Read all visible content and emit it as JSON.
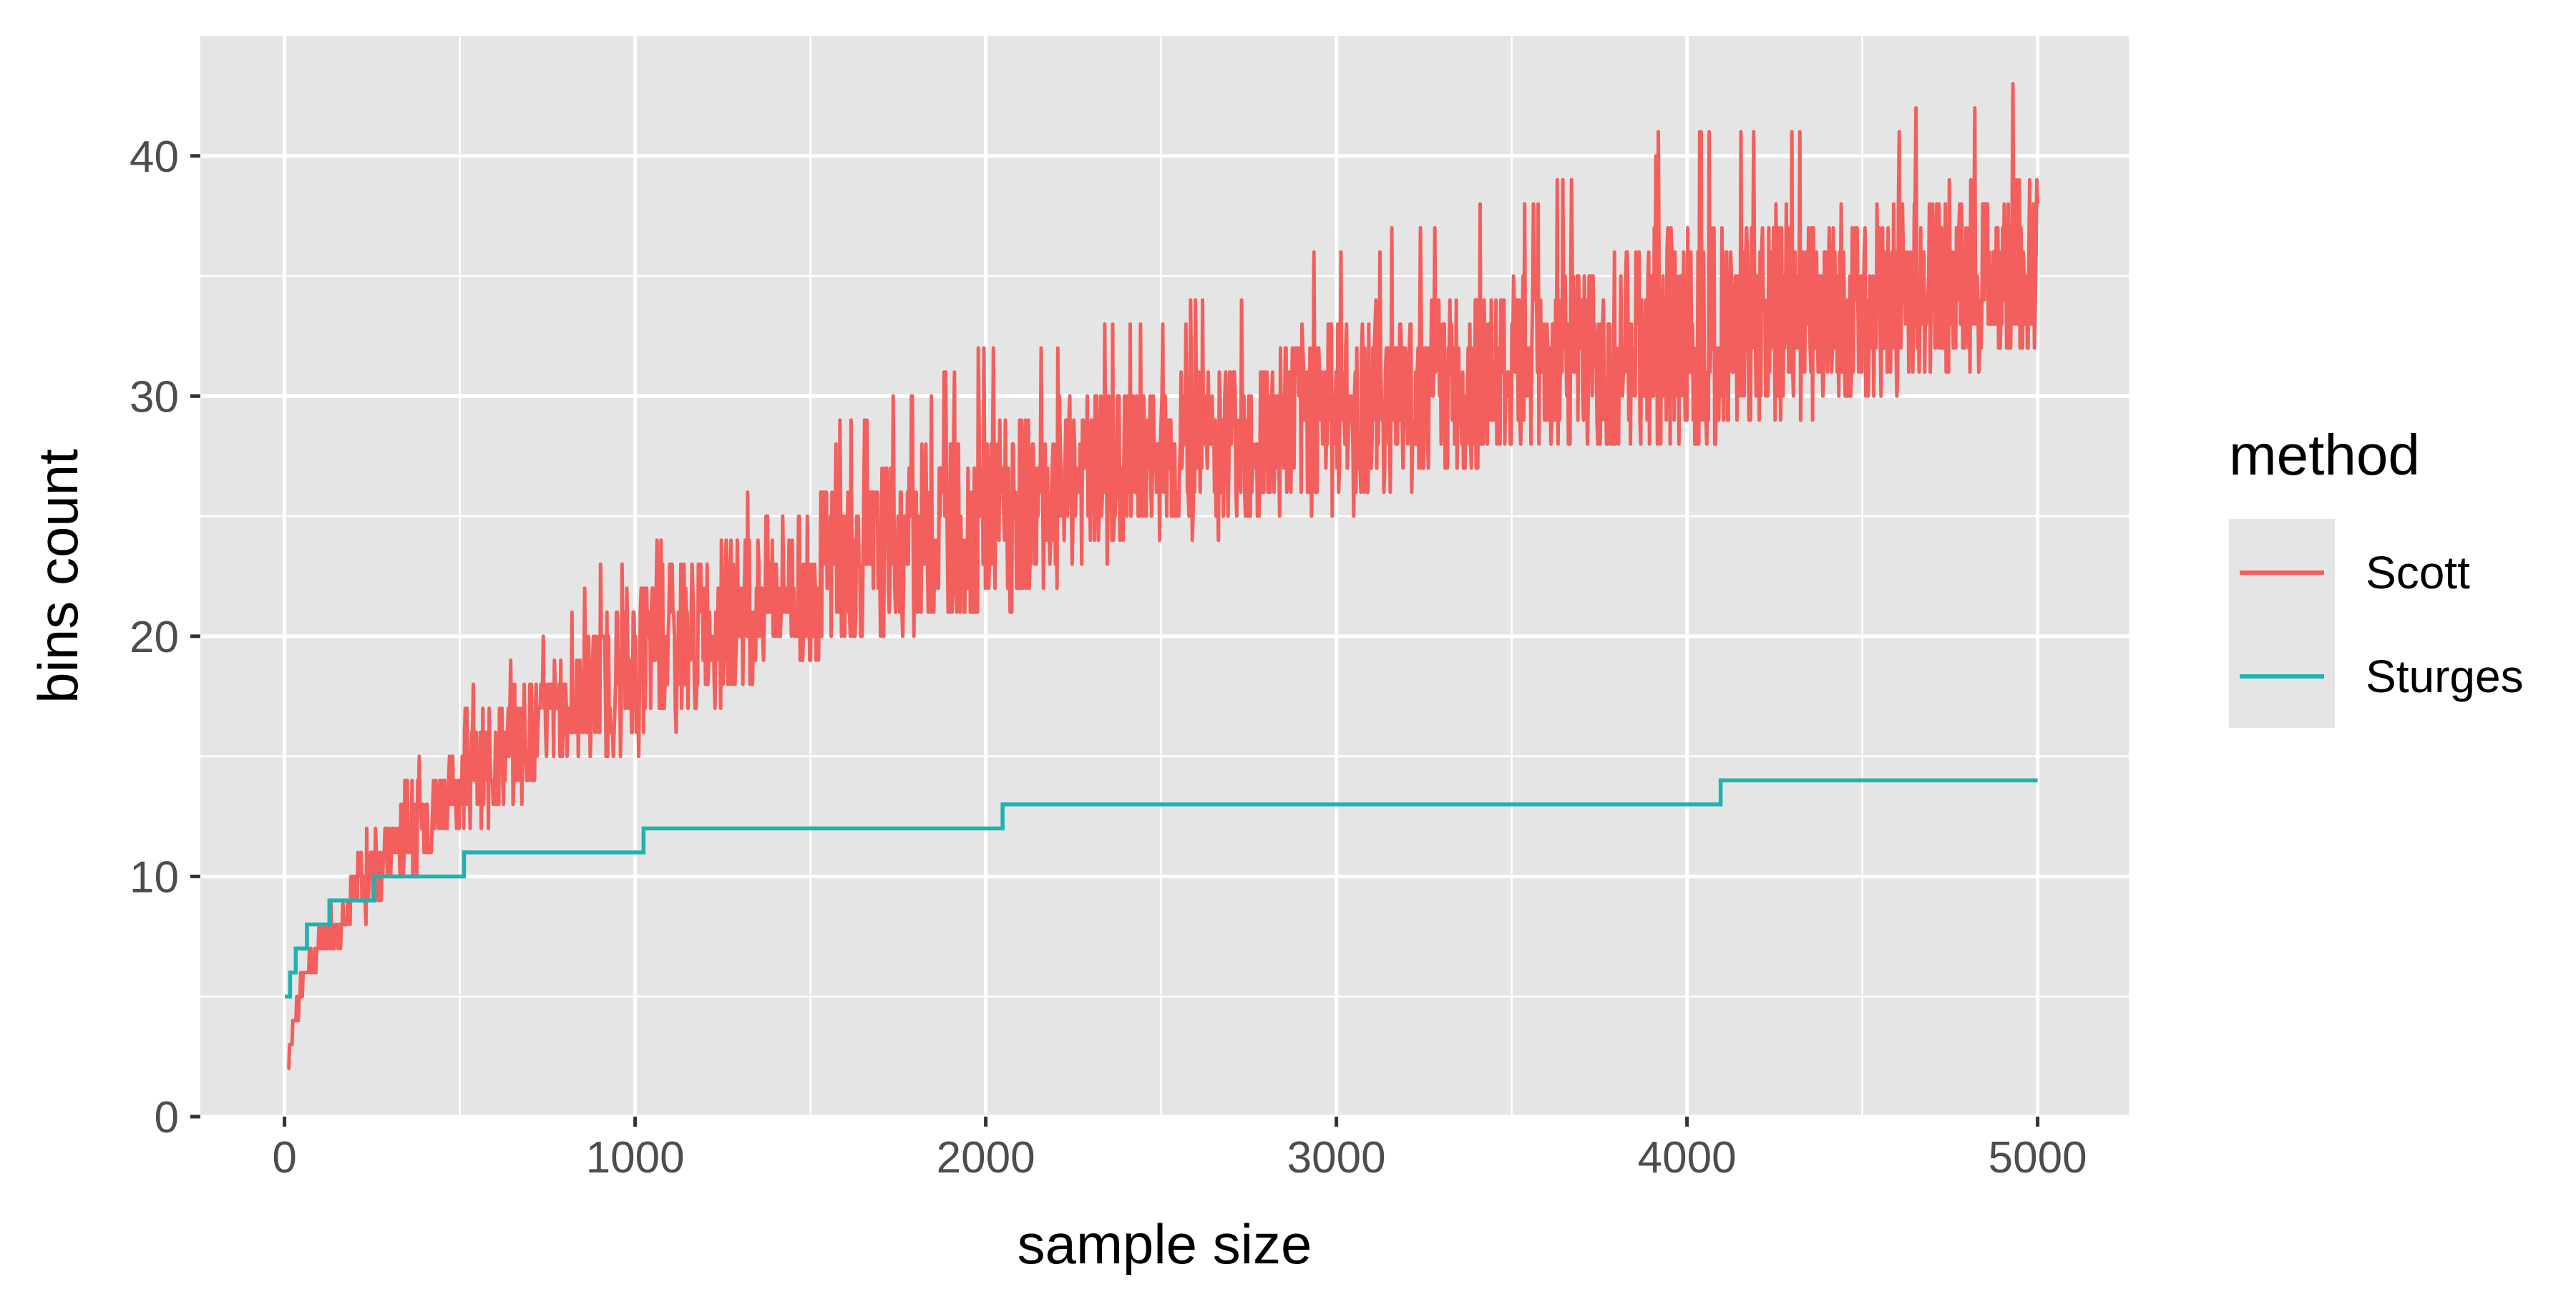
{
  "chart_data": {
    "type": "line",
    "title": "",
    "xlabel": "sample size",
    "ylabel": "bins count",
    "xlim": [
      -240,
      5260
    ],
    "ylim": [
      0,
      45
    ],
    "x_ticks": [
      0,
      1000,
      2000,
      3000,
      4000,
      5000
    ],
    "x_tick_labels": [
      "0",
      "1000",
      "2000",
      "3000",
      "4000",
      "5000"
    ],
    "y_ticks": [
      0,
      10,
      20,
      30,
      40
    ],
    "y_tick_labels": [
      "0",
      "10",
      "20",
      "30",
      "40"
    ],
    "grid": true,
    "legend": {
      "title": "method",
      "placement": "right",
      "entries": [
        "Scott",
        "Sturges"
      ]
    },
    "colors": {
      "panel_background": "#e5e5e5",
      "grid": "#ffffff",
      "Scott": "#f25f5c",
      "Sturges": "#20b2b2"
    },
    "series": [
      {
        "name": "Scott",
        "description_values": "noisy series; trend points below (mean with min/max band)",
        "x": [
          10,
          50,
          100,
          200,
          300,
          400,
          500,
          600,
          800,
          1000,
          1200,
          1500,
          1800,
          2000,
          2500,
          3000,
          3500,
          4000,
          4500,
          5000
        ],
        "mean": [
          2.5,
          5.5,
          7,
          9.5,
          11,
          12.5,
          14,
          15,
          17,
          19,
          20.5,
          22.5,
          24,
          25,
          27.5,
          29.5,
          31,
          32.5,
          34,
          35.5
        ],
        "min": [
          2,
          5,
          6,
          8,
          9,
          10,
          12,
          12,
          15,
          15,
          17,
          19,
          20,
          21,
          24,
          25,
          28,
          28,
          30,
          32
        ],
        "max": [
          3,
          6,
          8,
          11,
          13,
          15,
          17,
          19,
          21,
          24,
          25,
          28,
          30,
          32,
          33,
          36,
          38,
          41,
          41,
          43
        ]
      },
      {
        "name": "Sturges",
        "x": [
          1,
          16,
          32,
          64,
          128,
          256,
          512,
          1024,
          2048,
          4096,
          5000
        ],
        "values": [
          5,
          6,
          7,
          8,
          9,
          10,
          11,
          12,
          13,
          14,
          14
        ]
      }
    ]
  }
}
